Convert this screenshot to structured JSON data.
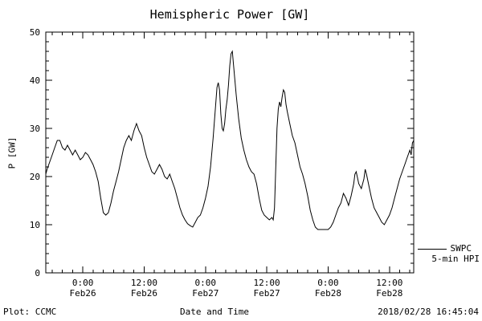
{
  "chart_data": {
    "type": "line",
    "title": "Hemispheric Power [GW]",
    "xlabel": "Date and Time",
    "ylabel": "P [GW]",
    "ylim": [
      0,
      50
    ],
    "xlim_hours_rel_feb26": [
      -7.25,
      64.75
    ],
    "y_ticks": [
      0,
      10,
      20,
      30,
      40,
      50
    ],
    "y_minor_step": 2,
    "x_minor_step_hours": 2,
    "x_ticks": [
      {
        "h": 0,
        "time": "0:00",
        "date": "Feb26"
      },
      {
        "h": 12,
        "time": "12:00",
        "date": "Feb26"
      },
      {
        "h": 24,
        "time": "0:00",
        "date": "Feb27"
      },
      {
        "h": 36,
        "time": "12:00",
        "date": "Feb27"
      },
      {
        "h": 48,
        "time": "0:00",
        "date": "Feb28"
      },
      {
        "h": 60,
        "time": "12:00",
        "date": "Feb28"
      }
    ],
    "grid": false,
    "legend_position": "right-outside-bottom",
    "line_color": "#000000",
    "background_color": "#ffffff",
    "series": [
      {
        "name": "SWPC 5-min HPI",
        "x_unit": "hours relative to Feb26 00:00",
        "y_unit": "GW",
        "points": [
          [
            -7.25,
            20.5
          ],
          [
            -7,
            21.5
          ],
          [
            -6.5,
            23
          ],
          [
            -6,
            24.5
          ],
          [
            -5.5,
            26
          ],
          [
            -5,
            27.5
          ],
          [
            -4.5,
            27.5
          ],
          [
            -4,
            26
          ],
          [
            -3.5,
            25.5
          ],
          [
            -3,
            26.5
          ],
          [
            -2.5,
            25.5
          ],
          [
            -2,
            24.5
          ],
          [
            -1.5,
            25.5
          ],
          [
            -1,
            24.5
          ],
          [
            -0.5,
            23.5
          ],
          [
            0,
            24
          ],
          [
            0.5,
            25
          ],
          [
            1,
            24.5
          ],
          [
            1.5,
            23.5
          ],
          [
            2,
            22.5
          ],
          [
            2.5,
            21
          ],
          [
            3,
            19
          ],
          [
            3.5,
            15.5
          ],
          [
            4,
            12.5
          ],
          [
            4.5,
            12
          ],
          [
            5,
            12.5
          ],
          [
            5.5,
            14.5
          ],
          [
            6,
            17
          ],
          [
            6.5,
            19
          ],
          [
            7,
            21
          ],
          [
            7.5,
            23.5
          ],
          [
            8,
            26
          ],
          [
            8.5,
            27.5
          ],
          [
            9,
            28.5
          ],
          [
            9.5,
            27.5
          ],
          [
            10,
            29.5
          ],
          [
            10.5,
            31
          ],
          [
            11,
            29.5
          ],
          [
            11.5,
            28.5
          ],
          [
            12,
            26
          ],
          [
            12.5,
            24
          ],
          [
            13,
            22.5
          ],
          [
            13.5,
            21
          ],
          [
            14,
            20.5
          ],
          [
            14.5,
            21.5
          ],
          [
            15,
            22.5
          ],
          [
            15.5,
            21.5
          ],
          [
            16,
            20
          ],
          [
            16.5,
            19.5
          ],
          [
            17,
            20.5
          ],
          [
            17.5,
            19
          ],
          [
            18,
            17.5
          ],
          [
            18.5,
            15.5
          ],
          [
            19,
            13.5
          ],
          [
            19.5,
            12
          ],
          [
            20,
            11
          ],
          [
            20.5,
            10.2
          ],
          [
            21,
            9.8
          ],
          [
            21.5,
            9.5
          ],
          [
            22,
            10.5
          ],
          [
            22.5,
            11.5
          ],
          [
            23,
            12
          ],
          [
            23.5,
            13.5
          ],
          [
            24,
            15.5
          ],
          [
            24.5,
            18
          ],
          [
            25,
            22
          ],
          [
            25.5,
            28
          ],
          [
            26,
            35
          ],
          [
            26.25,
            38.5
          ],
          [
            26.5,
            39.5
          ],
          [
            26.75,
            38
          ],
          [
            27,
            33
          ],
          [
            27.25,
            30
          ],
          [
            27.5,
            29.5
          ],
          [
            27.75,
            31
          ],
          [
            28,
            34
          ],
          [
            28.25,
            36
          ],
          [
            28.5,
            39
          ],
          [
            28.75,
            43
          ],
          [
            29,
            45.5
          ],
          [
            29.25,
            46
          ],
          [
            29.5,
            43
          ],
          [
            29.75,
            40
          ],
          [
            30,
            37
          ],
          [
            30.5,
            32
          ],
          [
            31,
            28
          ],
          [
            31.5,
            25.5
          ],
          [
            32,
            23.5
          ],
          [
            32.5,
            22
          ],
          [
            33,
            21
          ],
          [
            33.5,
            20.5
          ],
          [
            34,
            18.5
          ],
          [
            34.5,
            15.5
          ],
          [
            35,
            13
          ],
          [
            35.5,
            12
          ],
          [
            36,
            11.5
          ],
          [
            36.5,
            11
          ],
          [
            37,
            11.5
          ],
          [
            37.25,
            11
          ],
          [
            37.5,
            13.5
          ],
          [
            37.75,
            22
          ],
          [
            38,
            30
          ],
          [
            38.25,
            34
          ],
          [
            38.5,
            35.5
          ],
          [
            38.75,
            34.5
          ],
          [
            39,
            36.5
          ],
          [
            39.25,
            38
          ],
          [
            39.5,
            37.5
          ],
          [
            39.75,
            35
          ],
          [
            40,
            33.5
          ],
          [
            40.5,
            31
          ],
          [
            41,
            28.5
          ],
          [
            41.5,
            27
          ],
          [
            42,
            24.5
          ],
          [
            42.5,
            22
          ],
          [
            43,
            20.5
          ],
          [
            43.5,
            18.5
          ],
          [
            44,
            16
          ],
          [
            44.5,
            13
          ],
          [
            45,
            11
          ],
          [
            45.5,
            9.5
          ],
          [
            46,
            9
          ],
          [
            46.5,
            9
          ],
          [
            47,
            9
          ],
          [
            47.5,
            9
          ],
          [
            48,
            9
          ],
          [
            48.5,
            9.5
          ],
          [
            49,
            10.5
          ],
          [
            49.5,
            12
          ],
          [
            50,
            13.5
          ],
          [
            50.5,
            14.5
          ],
          [
            51,
            16.5
          ],
          [
            51.5,
            15.5
          ],
          [
            52,
            14
          ],
          [
            52.5,
            16
          ],
          [
            53,
            18.5
          ],
          [
            53.25,
            20.5
          ],
          [
            53.5,
            21
          ],
          [
            54,
            18.5
          ],
          [
            54.5,
            17.5
          ],
          [
            55,
            19.5
          ],
          [
            55.25,
            21.5
          ],
          [
            55.5,
            20.5
          ],
          [
            56,
            18
          ],
          [
            56.5,
            15.5
          ],
          [
            57,
            13.5
          ],
          [
            57.5,
            12.5
          ],
          [
            58,
            11.5
          ],
          [
            58.5,
            10.5
          ],
          [
            59,
            10
          ],
          [
            59.5,
            11
          ],
          [
            60,
            12
          ],
          [
            60.5,
            13.5
          ],
          [
            61,
            15.5
          ],
          [
            61.5,
            17.5
          ],
          [
            62,
            19.5
          ],
          [
            62.5,
            21
          ],
          [
            63,
            22.5
          ],
          [
            63.5,
            24
          ],
          [
            64,
            25.5
          ],
          [
            64.25,
            24.5
          ],
          [
            64.5,
            27
          ],
          [
            64.75,
            27.5
          ]
        ]
      }
    ]
  },
  "legend": {
    "source": "SWPC",
    "product": "5-min HPI"
  },
  "footer": {
    "left": "Plot: CCMC",
    "right": "2018/02/28 16:45:04"
  }
}
